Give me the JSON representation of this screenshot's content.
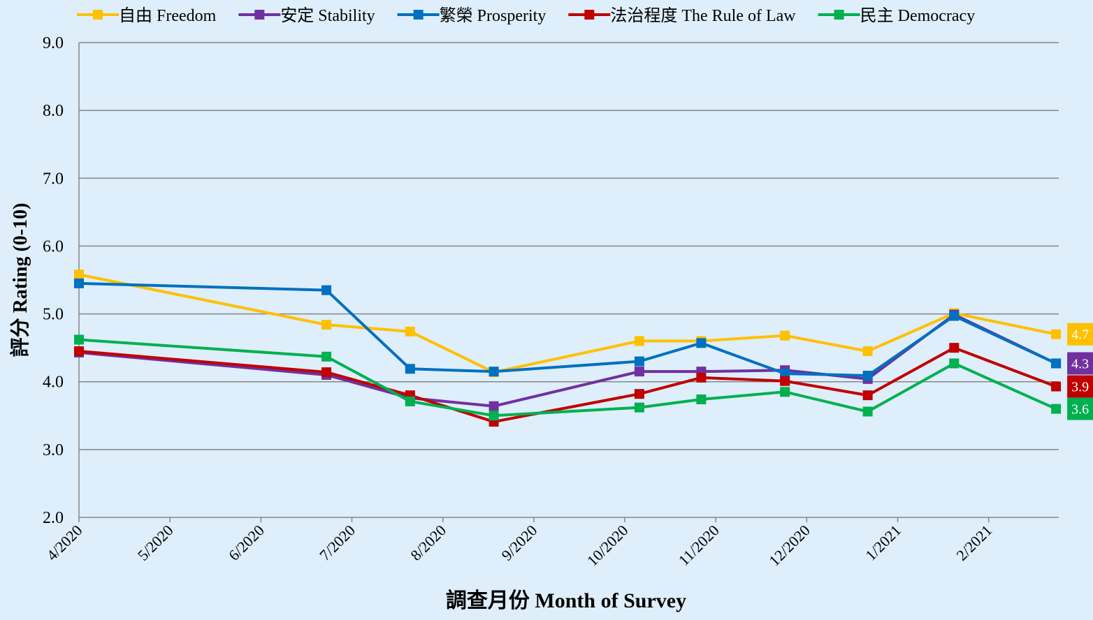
{
  "chart_data": {
    "type": "line",
    "x_label": "調查月份 Month of Survey",
    "y_label": "評分 Rating (0-10)",
    "x": [
      0,
      2.72,
      3.64,
      4.56,
      6.16,
      6.84,
      7.76,
      8.67,
      9.62,
      10.74
    ],
    "xlim": [
      0,
      10.77
    ],
    "xticks": [
      {
        "value": 0,
        "label": "4/2020"
      },
      {
        "value": 1,
        "label": "5/2020"
      },
      {
        "value": 2,
        "label": "6/2020"
      },
      {
        "value": 3,
        "label": "7/2020"
      },
      {
        "value": 4,
        "label": "8/2020"
      },
      {
        "value": 5,
        "label": "9/2020"
      },
      {
        "value": 6,
        "label": "10/2020"
      },
      {
        "value": 7,
        "label": "11/2020"
      },
      {
        "value": 8,
        "label": "12/2020"
      },
      {
        "value": 9,
        "label": "1/2021"
      },
      {
        "value": 10,
        "label": "2/2021"
      }
    ],
    "ylim": [
      2,
      9
    ],
    "yticks": [
      {
        "value": 2,
        "label": "2.0"
      },
      {
        "value": 3,
        "label": "3.0"
      },
      {
        "value": 4,
        "label": "4.0"
      },
      {
        "value": 5,
        "label": "5.0"
      },
      {
        "value": 6,
        "label": "6.0"
      },
      {
        "value": 7,
        "label": "7.0"
      },
      {
        "value": 8,
        "label": "8.0"
      },
      {
        "value": 9,
        "label": "9.0"
      }
    ],
    "grid": true,
    "legend": "top",
    "series": [
      {
        "name": "自由 Freedom",
        "color": "#FFC000",
        "values": [
          5.58,
          4.84,
          4.74,
          4.14,
          4.6,
          4.6,
          4.68,
          4.45,
          5.01,
          4.7
        ],
        "value_labels": [
          null,
          null,
          null,
          null,
          null,
          null,
          null,
          null,
          null,
          "4.7"
        ]
      },
      {
        "name": "安定 Stability",
        "color": "#7030A0",
        "values": [
          4.43,
          4.1,
          3.76,
          3.64,
          4.15,
          4.15,
          4.17,
          4.04,
          4.99,
          4.27
        ],
        "value_labels": [
          null,
          null,
          null,
          null,
          null,
          null,
          null,
          null,
          null,
          "4.3"
        ]
      },
      {
        "name": "繁榮 Prosperity",
        "color": "#0070C0",
        "values": [
          5.45,
          5.35,
          4.19,
          4.15,
          4.3,
          4.57,
          4.12,
          4.09,
          4.97,
          4.27
        ]
      },
      {
        "name": "法治程度 The Rule of Law",
        "color": "#C00000",
        "values": [
          4.45,
          4.14,
          3.8,
          3.41,
          3.82,
          4.06,
          4.01,
          3.8,
          4.5,
          3.93
        ],
        "value_labels": [
          null,
          null,
          null,
          null,
          null,
          null,
          null,
          null,
          null,
          "3.9"
        ]
      },
      {
        "name": "民主 Democracy",
        "color": "#00B050",
        "values": [
          4.62,
          4.37,
          3.71,
          3.5,
          3.62,
          3.74,
          3.85,
          3.56,
          4.27,
          3.6
        ],
        "value_labels": [
          null,
          null,
          null,
          null,
          null,
          null,
          null,
          null,
          null,
          "3.6"
        ]
      }
    ]
  }
}
